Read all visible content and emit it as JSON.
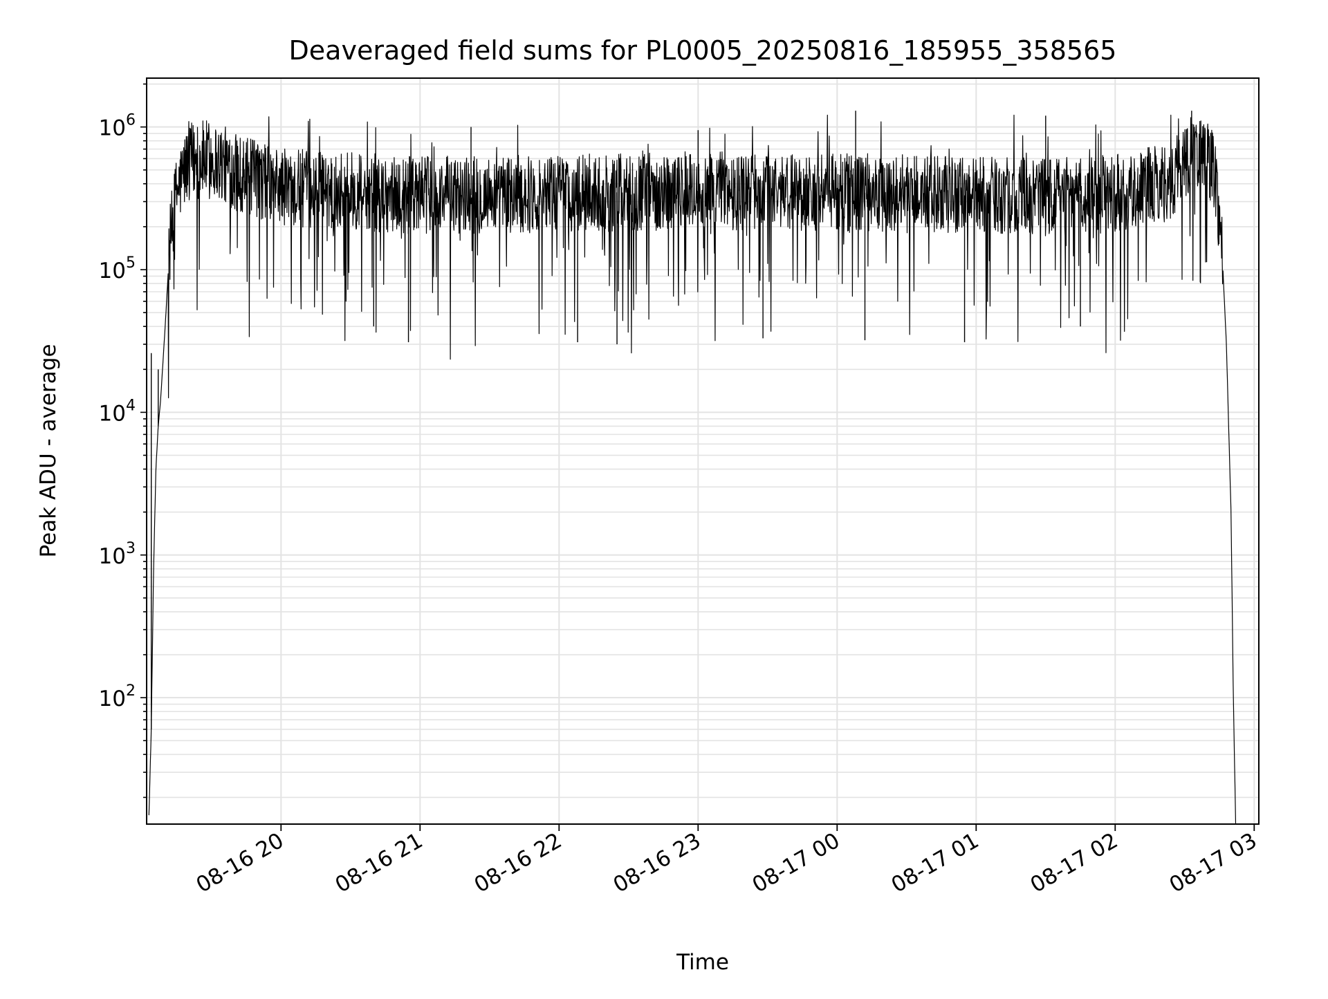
{
  "chart_data": {
    "type": "line",
    "title": "Deaveraged field sums for PL0005_20250816_185955_358565",
    "xlabel": "Time",
    "ylabel": "Peak ADU - average",
    "yscale": "log",
    "xlim": [
      "2025-08-16 19:02",
      "2025-08-17 03:02"
    ],
    "ylim": [
      13,
      2200000
    ],
    "grid": "on",
    "legend": "none",
    "x_ticks": [
      {
        "value": "2025-08-16 20:00",
        "label": "08-16 20"
      },
      {
        "value": "2025-08-16 21:00",
        "label": "08-16 21"
      },
      {
        "value": "2025-08-16 22:00",
        "label": "08-16 22"
      },
      {
        "value": "2025-08-16 23:00",
        "label": "08-16 23"
      },
      {
        "value": "2025-08-17 00:00",
        "label": "08-17 00"
      },
      {
        "value": "2025-08-17 01:00",
        "label": "08-17 01"
      },
      {
        "value": "2025-08-17 02:00",
        "label": "08-17 02"
      },
      {
        "value": "2025-08-17 03:00",
        "label": "08-17 03"
      }
    ],
    "y_ticks": [
      {
        "value": 100,
        "base": "10",
        "exp": "2"
      },
      {
        "value": 1000,
        "base": "10",
        "exp": "3"
      },
      {
        "value": 10000,
        "base": "10",
        "exp": "4"
      },
      {
        "value": 100000,
        "base": "10",
        "exp": "5"
      },
      {
        "value": 1000000,
        "base": "10",
        "exp": "6"
      }
    ],
    "series": [
      {
        "color": "#000000",
        "envelope": [
          {
            "t": "2025-08-16 19:03",
            "y": 15
          },
          {
            "t": "2025-08-16 19:04",
            "y": 60
          },
          {
            "t": "2025-08-16 19:05",
            "y": 800
          },
          {
            "t": "2025-08-16 19:06",
            "y": 4000
          },
          {
            "t": "2025-08-16 19:07",
            "y": 8000
          },
          {
            "t": "2025-08-16 19:08",
            "y": 12000
          },
          {
            "t": "2025-08-16 19:10",
            "y": 40000
          },
          {
            "t": "2025-08-16 19:12",
            "y": 150000
          },
          {
            "t": "2025-08-16 19:15",
            "y": 350000
          },
          {
            "t": "2025-08-16 19:20",
            "y": 580000
          },
          {
            "t": "2025-08-16 19:30",
            "y": 600000
          },
          {
            "t": "2025-08-16 19:45",
            "y": 450000
          },
          {
            "t": "2025-08-16 20:00",
            "y": 380000
          },
          {
            "t": "2025-08-16 21:00",
            "y": 330000
          },
          {
            "t": "2025-08-16 22:00",
            "y": 340000
          },
          {
            "t": "2025-08-16 23:00",
            "y": 360000
          },
          {
            "t": "2025-08-17 00:00",
            "y": 350000
          },
          {
            "t": "2025-08-17 01:00",
            "y": 330000
          },
          {
            "t": "2025-08-17 02:00",
            "y": 340000
          },
          {
            "t": "2025-08-17 02:25",
            "y": 420000
          },
          {
            "t": "2025-08-17 02:30",
            "y": 600000
          },
          {
            "t": "2025-08-17 02:37",
            "y": 720000
          },
          {
            "t": "2025-08-17 02:43",
            "y": 500000
          },
          {
            "t": "2025-08-17 02:46",
            "y": 150000
          },
          {
            "t": "2025-08-17 02:48",
            "y": 30000
          },
          {
            "t": "2025-08-17 02:50",
            "y": 2000
          },
          {
            "t": "2025-08-17 02:51",
            "y": 100
          },
          {
            "t": "2025-08-17 02:52",
            "y": 13
          }
        ],
        "spikes": [
          {
            "t": "2025-08-16 19:04",
            "y": 26000
          },
          {
            "t": "2025-08-16 19:07",
            "y": 20000
          },
          {
            "t": "2025-08-16 20:40",
            "y": 40000
          },
          {
            "t": "2025-08-16 20:55",
            "y": 31000
          },
          {
            "t": "2025-08-16 21:22",
            "y": 1000000
          },
          {
            "t": "2025-08-16 22:08",
            "y": 31000
          },
          {
            "t": "2025-08-16 22:25",
            "y": 30000
          },
          {
            "t": "2025-08-16 23:00",
            "y": 950000
          },
          {
            "t": "2025-08-16 23:28",
            "y": 33000
          },
          {
            "t": "2025-08-17 00:08",
            "y": 1300000
          },
          {
            "t": "2025-08-17 00:12",
            "y": 32000
          },
          {
            "t": "2025-08-17 00:55",
            "y": 31000
          },
          {
            "t": "2025-08-17 01:30",
            "y": 1200000
          },
          {
            "t": "2025-08-17 01:45",
            "y": 40000
          },
          {
            "t": "2025-08-17 02:33",
            "y": 1300000
          }
        ],
        "noise_band_low": 100000,
        "noise_band_high": 800000
      }
    ]
  }
}
